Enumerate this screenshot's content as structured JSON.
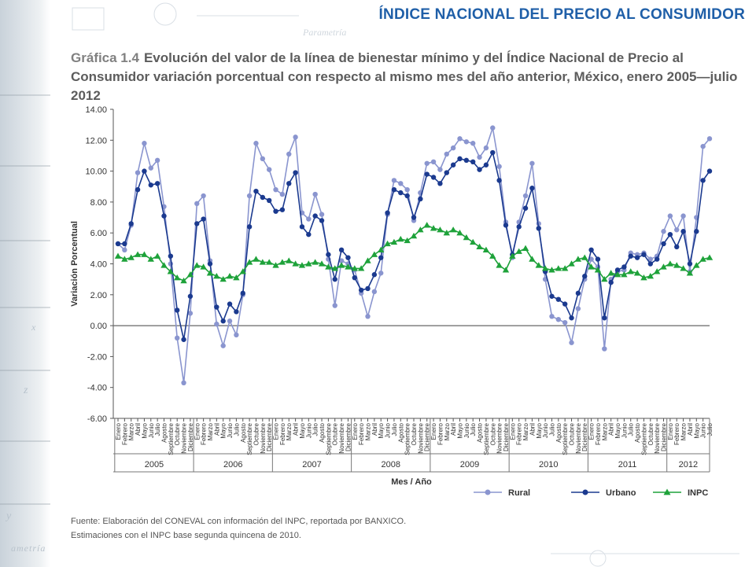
{
  "slide": {
    "title": "ÍNDICE NACIONAL DEL PRECIO AL CONSUMIDOR",
    "bg_word_1": "Parametría",
    "bg_word_2": "ametría",
    "footer_mark": "ametría"
  },
  "chart": {
    "label": "Gráfica 1.4",
    "heading": "Evolución del valor de la línea de bienestar mínimo y del Índice Nacional de Precio al Consumidor variación porcentual con respecto al mismo mes del año anterior, México, enero 2005—julio 2012",
    "footnote_1": "Fuente: Elaboración del CONEVAL con información del INPC, reportada por BANXICO.",
    "footnote_2": "Estimaciones con el INPC base segunda quincena de 2010."
  },
  "chart_data": {
    "type": "line",
    "ylabel": "Variación Porcentual",
    "xlabel": "Mes / Año",
    "ylim": [
      -6,
      14
    ],
    "yticks": [
      "14.00",
      "12.00",
      "10.00",
      "8.00",
      "6.00",
      "4.00",
      "2.00",
      "0.00",
      "-2.00",
      "-4.00",
      "-6.00"
    ],
    "month_labels": [
      "Enero",
      "Febrero",
      "Marzo",
      "Abril",
      "Mayo",
      "Junio",
      "Julio",
      "Agosto",
      "Septiembre",
      "Octubre",
      "Noviembre",
      "Diciembre"
    ],
    "years": [
      "2005",
      "2006",
      "2007",
      "2008",
      "2009",
      "2010",
      "2011",
      "2012"
    ],
    "legend_position": "bottom-right",
    "grid": false,
    "series": [
      {
        "name": "Rural",
        "color": "#8a95cf",
        "marker": "circle",
        "values": [
          5.3,
          4.9,
          6.5,
          9.9,
          11.8,
          10.2,
          10.7,
          7.7,
          4.0,
          -0.8,
          -3.7,
          0.8,
          7.9,
          8.4,
          4.2,
          0.1,
          -1.3,
          0.3,
          -0.6,
          2.0,
          8.4,
          11.8,
          10.8,
          10.1,
          8.8,
          8.5,
          11.1,
          12.2,
          7.3,
          6.9,
          8.5,
          7.2,
          4.3,
          1.3,
          4.2,
          4.0,
          3.6,
          2.1,
          0.6,
          2.2,
          3.4,
          7.2,
          9.4,
          9.2,
          8.8,
          6.8,
          8.6,
          10.5,
          10.6,
          10.1,
          11.1,
          11.5,
          12.1,
          11.9,
          11.8,
          10.9,
          11.5,
          12.8,
          10.3,
          6.7,
          4.4,
          6.7,
          8.4,
          10.5,
          6.6,
          3.0,
          0.6,
          0.4,
          0.2,
          -1.1,
          1.1,
          3.0,
          4.3,
          3.8,
          -1.5,
          3.0,
          3.5,
          3.6,
          4.7,
          4.6,
          4.7,
          4.3,
          4.5,
          6.1,
          7.1,
          6.2,
          7.1,
          3.5,
          7.0,
          11.6,
          12.1
        ]
      },
      {
        "name": "Urbano",
        "color": "#1b3a8f",
        "marker": "circle",
        "values": [
          5.3,
          5.3,
          6.6,
          8.8,
          10.0,
          9.1,
          9.2,
          7.1,
          4.5,
          1.0,
          -0.9,
          1.9,
          6.6,
          6.9,
          4.0,
          1.2,
          0.3,
          1.4,
          0.9,
          2.1,
          6.4,
          8.7,
          8.3,
          8.1,
          7.4,
          7.5,
          9.2,
          9.9,
          6.4,
          5.9,
          7.1,
          6.8,
          4.6,
          3.0,
          4.9,
          4.4,
          3.1,
          2.3,
          2.4,
          3.3,
          4.4,
          7.3,
          8.8,
          8.6,
          8.4,
          7.0,
          8.2,
          9.8,
          9.6,
          9.2,
          9.9,
          10.4,
          10.8,
          10.7,
          10.6,
          10.1,
          10.4,
          11.2,
          9.4,
          6.5,
          4.6,
          6.4,
          7.6,
          8.9,
          6.3,
          3.5,
          1.9,
          1.7,
          1.4,
          0.5,
          2.1,
          3.2,
          4.9,
          4.3,
          0.5,
          2.8,
          3.6,
          3.8,
          4.5,
          4.4,
          4.6,
          4.0,
          4.3,
          5.3,
          5.9,
          5.1,
          6.1,
          4.0,
          6.1,
          9.4,
          10.0
        ]
      },
      {
        "name": "INPC",
        "color": "#1ea23a",
        "marker": "triangle",
        "values": [
          4.5,
          4.3,
          4.4,
          4.6,
          4.6,
          4.3,
          4.5,
          3.9,
          3.5,
          3.1,
          2.9,
          3.3,
          3.9,
          3.8,
          3.4,
          3.2,
          3.0,
          3.2,
          3.1,
          3.5,
          4.1,
          4.3,
          4.1,
          4.1,
          3.9,
          4.1,
          4.2,
          4.0,
          3.9,
          4.0,
          4.1,
          4.0,
          3.8,
          3.7,
          3.9,
          3.8,
          3.7,
          3.7,
          4.2,
          4.6,
          4.9,
          5.3,
          5.4,
          5.6,
          5.5,
          5.8,
          6.2,
          6.5,
          6.3,
          6.2,
          6.0,
          6.2,
          6.0,
          5.7,
          5.4,
          5.1,
          4.9,
          4.5,
          3.9,
          3.6,
          4.5,
          4.8,
          5.0,
          4.3,
          3.9,
          3.7,
          3.6,
          3.7,
          3.7,
          4.0,
          4.3,
          4.4,
          3.8,
          3.6,
          3.0,
          3.4,
          3.3,
          3.3,
          3.5,
          3.4,
          3.1,
          3.2,
          3.5,
          3.8,
          4.0,
          3.9,
          3.7,
          3.4,
          3.9,
          4.3,
          4.4
        ]
      }
    ]
  }
}
